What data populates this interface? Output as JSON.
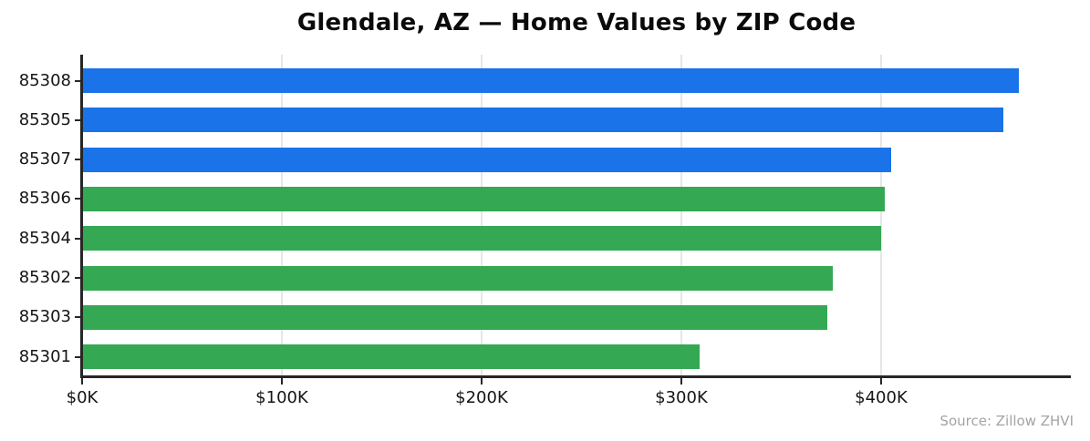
{
  "title": "Glendale, AZ — Home Values by ZIP Code",
  "source_note": "Source: Zillow ZHVI",
  "colors": {
    "bar_blue": "#1a73e8",
    "bar_green": "#34a853",
    "axis": "#262626",
    "gridline": "#e6e6e6",
    "title_text": "#0a0a0a",
    "tick_text": "#151515",
    "source_text": "#a3a3a3",
    "background": "#ffffff"
  },
  "chart_data": {
    "type": "bar",
    "orientation": "horizontal",
    "title": "Glendale, AZ — Home Values by ZIP Code",
    "categories": [
      "85308",
      "85305",
      "85307",
      "85306",
      "85304",
      "85302",
      "85303",
      "85301"
    ],
    "values": [
      469,
      461,
      405,
      402,
      400,
      376,
      373,
      309
    ],
    "value_unit": "USD thousands",
    "bar_colors": [
      "#1a73e8",
      "#1a73e8",
      "#1a73e8",
      "#34a853",
      "#34a853",
      "#34a853",
      "#34a853",
      "#34a853"
    ],
    "xlabel": "",
    "ylabel": "",
    "x_tick_values": [
      0,
      100,
      200,
      300,
      400
    ],
    "x_tick_labels": [
      "$0K",
      "$100K",
      "$200K",
      "$300K",
      "$400K"
    ],
    "xlim": [
      0,
      495
    ],
    "grid": "vertical-only",
    "legend": "none",
    "annotation": "Source: Zillow ZHVI"
  }
}
